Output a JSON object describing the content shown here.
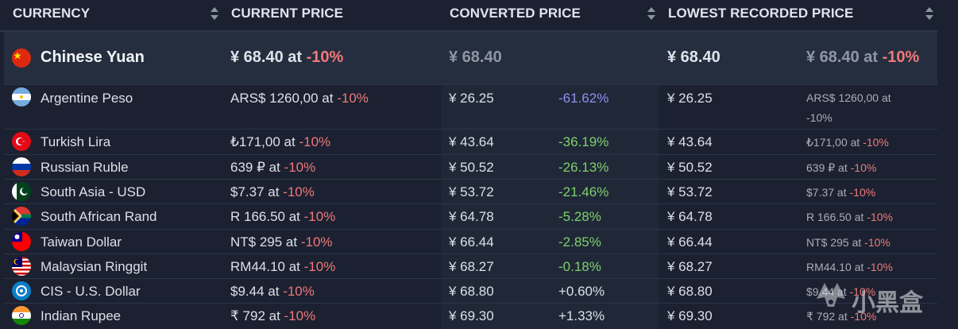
{
  "header": {
    "currency": "CURRENCY",
    "current_price": "CURRENT PRICE",
    "converted_price": "CONVERTED PRICE",
    "lowest_recorded_price": "LOWEST RECORDED PRICE"
  },
  "highlight": {
    "name": "Chinese Yuan",
    "flag_icon": "china-flag-icon",
    "current_price": "¥ 68.40 at",
    "current_discount": "-10%",
    "converted": "¥ 68.40",
    "lowest": "¥ 68.40",
    "lowest_detail": "¥ 68.40 at",
    "lowest_discount": "-10%"
  },
  "rows": [
    {
      "name": "Argentine Peso",
      "flag_icon": "argentina-flag-icon",
      "price": "ARS$ 1260,00 at",
      "discount": "-10%",
      "converted": "¥ 26.25",
      "diff": "-61.62%",
      "lowest": "¥ 26.25",
      "lowest_detail": "ARS$ 1260,00 at",
      "lowest_discount": "-10%"
    },
    {
      "name": "Turkish Lira",
      "flag_icon": "turkey-flag-icon",
      "price": "₺171,00 at",
      "discount": "-10%",
      "converted": "¥ 43.64",
      "diff": "-36.19%",
      "lowest": "¥ 43.64",
      "lowest_detail": "₺171,00 at",
      "lowest_discount": "-10%"
    },
    {
      "name": "Russian Ruble",
      "flag_icon": "russia-flag-icon",
      "price": "639 ₽ at",
      "discount": "-10%",
      "converted": "¥ 50.52",
      "diff": "-26.13%",
      "lowest": "¥ 50.52",
      "lowest_detail": "639 ₽ at",
      "lowest_discount": "-10%"
    },
    {
      "name": "South Asia - USD",
      "flag_icon": "pakistan-flag-icon",
      "price": "$7.37 at",
      "discount": "-10%",
      "converted": "¥ 53.72",
      "diff": "-21.46%",
      "lowest": "¥ 53.72",
      "lowest_detail": "$7.37 at",
      "lowest_discount": "-10%"
    },
    {
      "name": "South African Rand",
      "flag_icon": "south-africa-flag-icon",
      "price": "R 166.50 at",
      "discount": "-10%",
      "converted": "¥ 64.78",
      "diff": "-5.28%",
      "lowest": "¥ 64.78",
      "lowest_detail": "R 166.50 at",
      "lowest_discount": "-10%"
    },
    {
      "name": "Taiwan Dollar",
      "flag_icon": "taiwan-flag-icon",
      "price": "NT$ 295 at",
      "discount": "-10%",
      "converted": "¥ 66.44",
      "diff": "-2.85%",
      "lowest": "¥ 66.44",
      "lowest_detail": "NT$ 295 at",
      "lowest_discount": "-10%"
    },
    {
      "name": "Malaysian Ringgit",
      "flag_icon": "malaysia-flag-icon",
      "price": "RM44.10 at",
      "discount": "-10%",
      "converted": "¥ 68.27",
      "diff": "-0.18%",
      "lowest": "¥ 68.27",
      "lowest_detail": "RM44.10 at",
      "lowest_discount": "-10%"
    },
    {
      "name": "CIS - U.S. Dollar",
      "flag_icon": "cis-flag-icon",
      "price": "$9.44 at",
      "discount": "-10%",
      "converted": "¥ 68.80",
      "diff": "+0.60%",
      "lowest": "¥ 68.80",
      "lowest_detail": "$9.44 at",
      "lowest_discount": "-10%"
    },
    {
      "name": "Indian Rupee",
      "flag_icon": "india-flag-icon",
      "price": "₹ 792 at",
      "discount": "-10%",
      "converted": "¥ 69.30",
      "diff": "+1.33%",
      "lowest": "¥ 69.30",
      "lowest_detail": "₹ 792 at",
      "lowest_discount": "-10%"
    }
  ],
  "watermark": {
    "text": "小黑盒"
  },
  "colors": {
    "discount_red": "#f0787a",
    "diff_negative_green": "#7fd06b",
    "diff_cheapest_purple": "#8f8ff0"
  }
}
